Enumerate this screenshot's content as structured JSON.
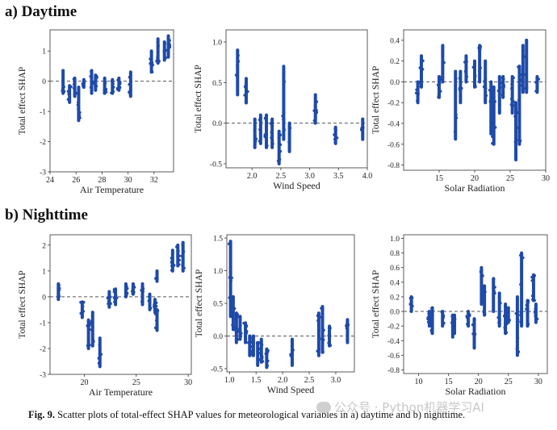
{
  "sections": {
    "day": "a) Daytime",
    "night": "b) Nighttime"
  },
  "caption": {
    "label": "Fig. 9.",
    "text": "Scatter plots of total-effect SHAP values for meteorological variables in a) daytime and b) nighttime."
  },
  "watermark": "公众号 · Python机器学习AI",
  "colors": {
    "points": "#1f4aa8",
    "zero_line": "#555555"
  },
  "chart_data": [
    {
      "id": "day-temp",
      "type": "scatter",
      "xlabel": "Air Temperature",
      "ylabel": "Total effect SHAP",
      "xlim": [
        24,
        33.5
      ],
      "ylim": [
        -3.0,
        1.7
      ],
      "xticks": [
        24,
        26,
        28,
        30,
        32
      ],
      "yticks": [
        1.0,
        0.0,
        -1.0,
        -2.0,
        -3.0
      ],
      "clusters": [
        {
          "x": 25.0,
          "lo": -0.4,
          "hi": 0.35
        },
        {
          "x": 25.5,
          "lo": -0.7,
          "hi": -0.15
        },
        {
          "x": 25.9,
          "lo": -0.5,
          "hi": 0.1
        },
        {
          "x": 26.2,
          "lo": -1.3,
          "hi": -0.2
        },
        {
          "x": 26.6,
          "lo": -0.2,
          "hi": 0.05
        },
        {
          "x": 27.2,
          "lo": -0.4,
          "hi": 0.35
        },
        {
          "x": 27.5,
          "lo": -0.3,
          "hi": 0.2
        },
        {
          "x": 28.2,
          "lo": -0.4,
          "hi": 0.1
        },
        {
          "x": 28.8,
          "lo": -0.4,
          "hi": 0.05
        },
        {
          "x": 29.3,
          "lo": -0.3,
          "hi": 0.1
        },
        {
          "x": 30.2,
          "lo": -0.5,
          "hi": 0.3
        },
        {
          "x": 31.8,
          "lo": 0.3,
          "hi": 1.0
        },
        {
          "x": 32.3,
          "lo": 0.6,
          "hi": 1.4
        },
        {
          "x": 32.8,
          "lo": 0.7,
          "hi": 1.3
        },
        {
          "x": 33.1,
          "lo": 0.8,
          "hi": 1.5
        }
      ]
    },
    {
      "id": "day-wind",
      "type": "scatter",
      "xlabel": "Wind Speed",
      "ylabel": "Total effect SHAP",
      "xlim": [
        1.55,
        4.0
      ],
      "ylim": [
        -0.55,
        1.15
      ],
      "xticks": [
        2.0,
        2.5,
        3.0,
        3.5,
        4.0
      ],
      "yticks": [
        1.0,
        0.5,
        0.0,
        -0.5
      ],
      "clusters": [
        {
          "x": 1.75,
          "lo": 0.35,
          "hi": 0.9
        },
        {
          "x": 1.9,
          "lo": 0.25,
          "hi": 0.55
        },
        {
          "x": 2.05,
          "lo": -0.3,
          "hi": 0.05
        },
        {
          "x": 2.15,
          "lo": -0.25,
          "hi": 0.1
        },
        {
          "x": 2.25,
          "lo": -0.3,
          "hi": 0.1
        },
        {
          "x": 2.35,
          "lo": -0.3,
          "hi": 0.05
        },
        {
          "x": 2.47,
          "lo": -0.5,
          "hi": -0.1
        },
        {
          "x": 2.55,
          "lo": -0.2,
          "hi": 0.7
        },
        {
          "x": 2.65,
          "lo": -0.35,
          "hi": 0.0
        },
        {
          "x": 3.1,
          "lo": 0.0,
          "hi": 0.35
        },
        {
          "x": 3.45,
          "lo": -0.25,
          "hi": -0.05
        },
        {
          "x": 3.92,
          "lo": -0.2,
          "hi": 0.05
        }
      ]
    },
    {
      "id": "day-solar",
      "type": "scatter",
      "xlabel": "Solar Radiation",
      "ylabel": "Total effect SHAP",
      "xlim": [
        10,
        30
      ],
      "ylim": [
        -0.85,
        0.5
      ],
      "xticks": [
        15,
        20,
        25,
        30
      ],
      "yticks": [
        0.4,
        0.2,
        0.0,
        -0.2,
        -0.4,
        -0.6,
        -0.8
      ],
      "clusters": [
        {
          "x": 12.0,
          "lo": -0.2,
          "hi": 0.0
        },
        {
          "x": 12.5,
          "lo": -0.05,
          "hi": 0.25
        },
        {
          "x": 15.0,
          "lo": -0.15,
          "hi": 0.05
        },
        {
          "x": 15.5,
          "lo": 0.0,
          "hi": 0.35
        },
        {
          "x": 17.3,
          "lo": -0.55,
          "hi": 0.1
        },
        {
          "x": 18.0,
          "lo": -0.2,
          "hi": 0.1
        },
        {
          "x": 18.8,
          "lo": 0.0,
          "hi": 0.25
        },
        {
          "x": 20.0,
          "lo": -0.05,
          "hi": 0.2
        },
        {
          "x": 20.7,
          "lo": 0.0,
          "hi": 0.35
        },
        {
          "x": 21.5,
          "lo": -0.2,
          "hi": 0.2
        },
        {
          "x": 22.3,
          "lo": -0.5,
          "hi": 0.0
        },
        {
          "x": 22.7,
          "lo": -0.6,
          "hi": -0.05
        },
        {
          "x": 23.5,
          "lo": -0.3,
          "hi": 0.05
        },
        {
          "x": 24.0,
          "lo": -0.15,
          "hi": 0.05
        },
        {
          "x": 25.3,
          "lo": -0.3,
          "hi": 0.05
        },
        {
          "x": 25.8,
          "lo": -0.75,
          "hi": -0.2
        },
        {
          "x": 26.3,
          "lo": -0.6,
          "hi": 0.15
        },
        {
          "x": 26.8,
          "lo": -0.1,
          "hi": 0.35
        },
        {
          "x": 27.3,
          "lo": -0.1,
          "hi": 0.4
        },
        {
          "x": 28.8,
          "lo": -0.1,
          "hi": 0.05
        }
      ]
    },
    {
      "id": "night-temp",
      "type": "scatter",
      "xlabel": "Air Temperature",
      "ylabel": "Total effect SHAP",
      "xlim": [
        16.7,
        30.3
      ],
      "ylim": [
        -3.0,
        2.4
      ],
      "xticks": [
        20,
        25,
        30
      ],
      "yticks": [
        2.0,
        1.0,
        0.0,
        -1.0,
        -2.0,
        -3.0
      ],
      "clusters": [
        {
          "x": 17.5,
          "lo": -0.1,
          "hi": 0.5
        },
        {
          "x": 19.8,
          "lo": -0.8,
          "hi": -0.2
        },
        {
          "x": 20.4,
          "lo": -2.0,
          "hi": -0.9
        },
        {
          "x": 20.8,
          "lo": -1.9,
          "hi": -0.6
        },
        {
          "x": 21.5,
          "lo": -2.7,
          "hi": -1.6
        },
        {
          "x": 22.4,
          "lo": -0.4,
          "hi": 0.2
        },
        {
          "x": 23.0,
          "lo": -0.3,
          "hi": 0.3
        },
        {
          "x": 24.0,
          "lo": 0.0,
          "hi": 0.5
        },
        {
          "x": 24.7,
          "lo": 0.1,
          "hi": 0.5
        },
        {
          "x": 25.6,
          "lo": -0.3,
          "hi": 0.5
        },
        {
          "x": 26.3,
          "lo": -0.5,
          "hi": 0.1
        },
        {
          "x": 26.8,
          "lo": -0.6,
          "hi": -0.1
        },
        {
          "x": 27.0,
          "lo": -1.3,
          "hi": -0.5
        },
        {
          "x": 27.0,
          "lo": 0.6,
          "hi": 1.0
        },
        {
          "x": 28.5,
          "lo": 1.0,
          "hi": 1.8
        },
        {
          "x": 29.0,
          "lo": 1.2,
          "hi": 2.0
        },
        {
          "x": 29.5,
          "lo": 1.0,
          "hi": 2.1
        }
      ]
    },
    {
      "id": "night-wind",
      "type": "scatter",
      "xlabel": "Wind Speed",
      "ylabel": "Total effect SHAP",
      "xlim": [
        0.95,
        3.35
      ],
      "ylim": [
        -0.55,
        1.55
      ],
      "xticks": [
        1.0,
        1.5,
        2.0,
        2.5,
        3.0
      ],
      "yticks": [
        1.5,
        1.0,
        0.5,
        0.0,
        -0.5
      ],
      "clusters": [
        {
          "x": 1.02,
          "lo": 0.3,
          "hi": 1.45
        },
        {
          "x": 1.07,
          "lo": 0.1,
          "hi": 0.6
        },
        {
          "x": 1.13,
          "lo": -0.1,
          "hi": 0.35
        },
        {
          "x": 1.2,
          "lo": -0.05,
          "hi": 0.3
        },
        {
          "x": 1.3,
          "lo": -0.1,
          "hi": 0.2
        },
        {
          "x": 1.38,
          "lo": -0.3,
          "hi": 0.0
        },
        {
          "x": 1.45,
          "lo": -0.3,
          "hi": 0.0
        },
        {
          "x": 1.53,
          "lo": -0.45,
          "hi": -0.1
        },
        {
          "x": 1.6,
          "lo": -0.4,
          "hi": -0.05
        },
        {
          "x": 1.7,
          "lo": -0.48,
          "hi": -0.2
        },
        {
          "x": 2.18,
          "lo": -0.45,
          "hi": -0.05
        },
        {
          "x": 2.68,
          "lo": -0.3,
          "hi": 0.35
        },
        {
          "x": 2.75,
          "lo": -0.25,
          "hi": 0.45
        },
        {
          "x": 2.88,
          "lo": -0.15,
          "hi": 0.15
        },
        {
          "x": 3.22,
          "lo": -0.1,
          "hi": 0.25
        }
      ]
    },
    {
      "id": "night-solar",
      "type": "scatter",
      "xlabel": "Solar Radiation",
      "ylabel": "Total effect SHAP",
      "xlim": [
        7.5,
        31.5
      ],
      "ylim": [
        -0.85,
        1.05
      ],
      "xticks": [
        10,
        15,
        20,
        25,
        30
      ],
      "yticks": [
        1.0,
        0.8,
        0.6,
        0.4,
        0.2,
        0.0,
        -0.2,
        -0.4,
        -0.6,
        -0.8
      ],
      "clusters": [
        {
          "x": 8.8,
          "lo": 0.0,
          "hi": 0.2
        },
        {
          "x": 11.8,
          "lo": -0.2,
          "hi": 0.0
        },
        {
          "x": 12.3,
          "lo": -0.3,
          "hi": 0.05
        },
        {
          "x": 14.0,
          "lo": -0.2,
          "hi": 0.0
        },
        {
          "x": 15.7,
          "lo": -0.35,
          "hi": -0.05
        },
        {
          "x": 16.0,
          "lo": -0.3,
          "hi": -0.05
        },
        {
          "x": 18.3,
          "lo": -0.2,
          "hi": 0.0
        },
        {
          "x": 19.3,
          "lo": -0.5,
          "hi": -0.1
        },
        {
          "x": 20.5,
          "lo": 0.1,
          "hi": 0.6
        },
        {
          "x": 21.0,
          "lo": -0.05,
          "hi": 0.35
        },
        {
          "x": 22.5,
          "lo": 0.0,
          "hi": 0.45
        },
        {
          "x": 23.5,
          "lo": -0.2,
          "hi": 0.25
        },
        {
          "x": 24.5,
          "lo": -0.3,
          "hi": 0.1
        },
        {
          "x": 25.0,
          "lo": -0.15,
          "hi": 0.05
        },
        {
          "x": 26.5,
          "lo": -0.6,
          "hi": 0.2
        },
        {
          "x": 27.2,
          "lo": -0.2,
          "hi": 0.8
        },
        {
          "x": 28.2,
          "lo": -0.2,
          "hi": 0.15
        },
        {
          "x": 29.2,
          "lo": 0.15,
          "hi": 0.5
        },
        {
          "x": 29.6,
          "lo": -0.15,
          "hi": 0.1
        }
      ]
    }
  ]
}
